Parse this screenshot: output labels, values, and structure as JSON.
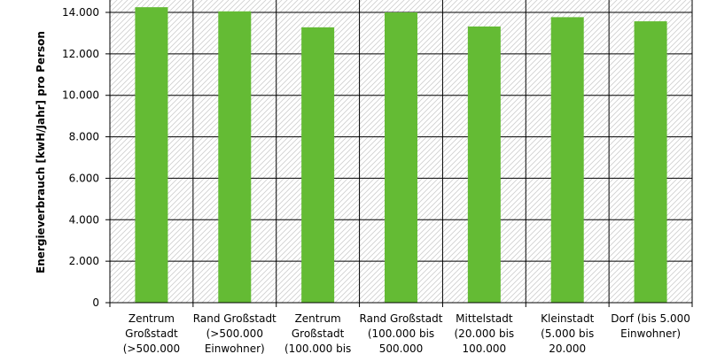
{
  "chart_data": {
    "type": "bar",
    "categories": [
      [
        "Zentrum",
        "Großstadt",
        "(>500.000"
      ],
      [
        "Rand Großstadt",
        "(>500.000",
        "Einwohner)"
      ],
      [
        "Zentrum",
        "Großstadt",
        "(100.000 bis"
      ],
      [
        "Rand Großstadt",
        "(100.000 bis",
        "500.000"
      ],
      [
        "Mittelstadt",
        "(20.000 bis",
        "100.000"
      ],
      [
        "Kleinstadt",
        "(5.000 bis",
        "20.000"
      ],
      [
        "Dorf (bis 5.000",
        "Einwohner)"
      ]
    ],
    "values": [
      14250,
      14050,
      13280,
      14000,
      13320,
      13770,
      13570
    ],
    "ylabel": "Energieverbrauch [kwH/Jahr] pro Person",
    "ylim": [
      0,
      14000
    ],
    "yticks": [
      0,
      2000,
      4000,
      6000,
      8000,
      10000,
      12000,
      14000
    ],
    "ytick_labels": [
      "0",
      "2.000",
      "4.000",
      "6.000",
      "8.000",
      "10.000",
      "12.000",
      "14.000"
    ],
    "grid": true,
    "colors": {
      "bar": "#64bb34",
      "grid": "#000000",
      "plot_hatch": "#cfcfcf"
    }
  }
}
